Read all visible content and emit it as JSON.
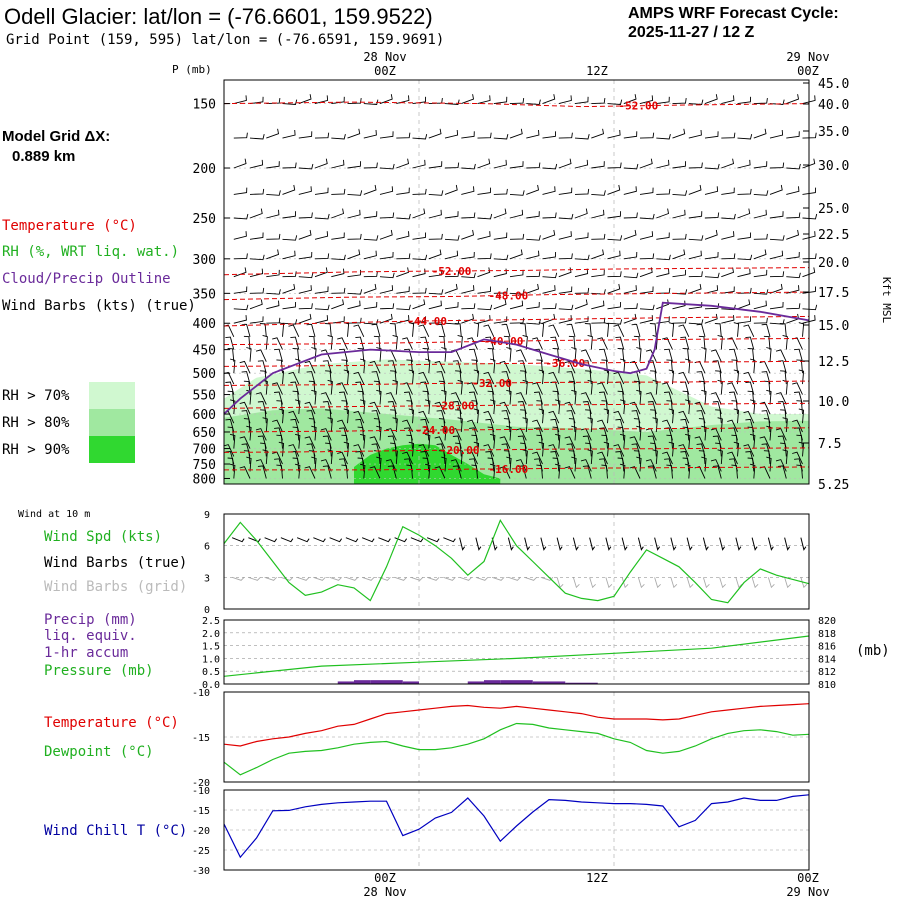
{
  "header": {
    "title": "Odell Glacier:  lat/lon = (-76.6601, 159.9522)",
    "subtitle": "Grid Point (159, 595) lat/lon = (-76.6591, 159.9691)",
    "cycle_line1": "AMPS WRF Forecast Cycle:",
    "cycle_line2": "2025-11-27 / 12  Z"
  },
  "sidebar": {
    "model_grid_label": "Model Grid ΔX:",
    "model_grid_value": "0.889 km",
    "legend_temperature": "Temperature (°C)",
    "legend_rh": "RH (%, WRT liq. wat.)",
    "legend_cloud": "Cloud/Precip Outline",
    "legend_wind": "Wind Barbs (kts) (true)",
    "rh_levels": [
      "RH > 70%",
      "RH > 80%",
      "RH > 90%"
    ],
    "rh_colors": [
      "#d0f8d0",
      "#a0e8a0",
      "#30d830"
    ],
    "wind10_title": "Wind at 10 m",
    "wind_spd_label": "Wind Spd (kts)",
    "wind_barbs_true": "Wind Barbs (true)",
    "wind_barbs_grid": "Wind Barbs (grid)",
    "precip_label_1": "Precip (mm)",
    "precip_label_2": "liq. equiv.",
    "precip_label_3": "1-hr accum",
    "pressure_label": "Pressure (mb)",
    "pressure_unit": "(mb)",
    "temp_label": "Temperature (°C)",
    "dew_label": "Dewpoint (°C)",
    "windchill_label": "Wind Chill T (°C)"
  },
  "time_axis": {
    "top_dates": [
      "28 Nov",
      "29 Nov"
    ],
    "ticks": [
      "00Z",
      "12Z",
      "00Z"
    ],
    "bottom_dates": [
      "28 Nov",
      "29 Nov"
    ]
  },
  "colors": {
    "temperature": "#e00000",
    "rh": "#20c020",
    "cloud": "#6a2a9a",
    "wind_true": "#000000",
    "wind_grid": "#aaaaaa",
    "precip": "#6a2a9a",
    "pressure": "#20c020",
    "windchill": "#0000c0"
  },
  "chart_data": [
    {
      "type": "heatmap",
      "name": "cross-section",
      "ylabel": "P (mb)",
      "right_label": "Kft MSL",
      "pressure_ticks": [
        "150",
        "200",
        "250",
        "300",
        "350",
        "400",
        "450",
        "500",
        "550",
        "600",
        "650",
        "700",
        "750",
        "800"
      ],
      "height_ticks": [
        "45.0",
        "40.0",
        "35.0",
        "30.0",
        "25.0",
        "22.5",
        "20.0",
        "17.5",
        "15.0",
        "12.5",
        "10.0",
        "7.5",
        "5.25"
      ],
      "ylim": [
        820,
        135
      ],
      "x_hours": [
        0,
        36
      ],
      "isotherms": [
        {
          "label": "-52.00",
          "hours": [
            0,
            8,
            16,
            22,
            28,
            36
          ],
          "p": [
            150,
            149,
            150,
            152,
            151,
            150
          ]
        },
        {
          "label": "-52.00",
          "hours": [
            0,
            8,
            12,
            18,
            24,
            36
          ],
          "p": [
            322,
            318,
            317,
            316,
            314,
            312
          ]
        },
        {
          "label": "-48.00",
          "hours": [
            0,
            8,
            14,
            20,
            28,
            36
          ],
          "p": [
            360,
            356,
            355,
            352,
            350,
            348
          ]
        },
        {
          "label": "-44.00",
          "hours": [
            0,
            6,
            12,
            20,
            28,
            36
          ],
          "p": [
            405,
            400,
            396,
            393,
            390,
            388
          ]
        },
        {
          "label": "-40.00",
          "hours": [
            0,
            8,
            14,
            20,
            28,
            36
          ],
          "p": [
            440,
            438,
            435,
            432,
            430,
            428
          ]
        },
        {
          "label": "-36.00",
          "hours": [
            0,
            8,
            14,
            20,
            28,
            36
          ],
          "p": [
            485,
            483,
            480,
            478,
            476,
            474
          ]
        },
        {
          "label": "-32.00",
          "hours": [
            0,
            8,
            14,
            20,
            28,
            36
          ],
          "p": [
            528,
            526,
            523,
            521,
            520,
            518
          ]
        },
        {
          "label": "-28.00",
          "hours": [
            0,
            8,
            14,
            20,
            28,
            36
          ],
          "p": [
            585,
            580,
            578,
            576,
            574,
            572
          ]
        },
        {
          "label": "-24.00",
          "hours": [
            0,
            6,
            12,
            20,
            28,
            36
          ],
          "p": [
            650,
            648,
            645,
            642,
            640,
            638
          ]
        },
        {
          "label": "-20.00",
          "hours": [
            0,
            6,
            12,
            20,
            28,
            36
          ],
          "p": [
            712,
            710,
            706,
            702,
            700,
            698
          ]
        },
        {
          "label": "-16.00",
          "hours": [
            0,
            8,
            14,
            22,
            28,
            36
          ],
          "p": [
            770,
            770,
            768,
            764,
            762,
            760
          ]
        }
      ],
      "cloud_outline": {
        "hours": [
          0,
          1,
          3,
          6,
          9,
          12,
          14,
          16,
          18,
          20,
          22,
          24,
          25,
          26,
          26.5,
          27,
          30,
          33,
          36
        ],
        "p": [
          600,
          560,
          500,
          460,
          450,
          455,
          455,
          430,
          440,
          460,
          480,
          495,
          500,
          490,
          450,
          365,
          370,
          380,
          395
        ]
      },
      "rh70": {
        "hours": [
          0,
          2,
          6,
          10,
          14,
          18,
          22,
          26,
          30,
          33,
          36
        ],
        "p_top": [
          560,
          510,
          480,
          470,
          475,
          480,
          490,
          505,
          580,
          600,
          600
        ]
      },
      "rh80": {
        "hours": [
          0,
          3,
          6,
          10,
          14,
          18,
          22,
          26,
          30,
          33,
          36
        ],
        "p_top": [
          610,
          590,
          585,
          600,
          615,
          635,
          640,
          650,
          630,
          620,
          618
        ]
      },
      "rh90": {
        "hours": [
          8,
          9,
          10,
          11,
          12,
          13,
          14,
          15,
          16,
          17
        ],
        "p_top": [
          760,
          720,
          700,
          690,
          685,
          690,
          720,
          750,
          785,
          800
        ]
      }
    },
    {
      "type": "line",
      "name": "wind-10m",
      "ylim": [
        0,
        9
      ],
      "y_ticks": [
        "9",
        "6",
        "3",
        "0"
      ],
      "x_hours": [
        0,
        1,
        2,
        3,
        4,
        5,
        6,
        7,
        8,
        9,
        10,
        11,
        12,
        13,
        14,
        15,
        16,
        17,
        18,
        19,
        20,
        21,
        22,
        23,
        24,
        25,
        26,
        27,
        28,
        29,
        30,
        31,
        32,
        33,
        34,
        35,
        36
      ],
      "series": [
        {
          "name": "Wind Spd (kts)",
          "values": [
            6.2,
            8.2,
            6.5,
            4.5,
            2.5,
            1.3,
            1.6,
            2.3,
            2.0,
            0.8,
            4.0,
            7.8,
            7.0,
            6.0,
            4.8,
            3.2,
            4.5,
            8.4,
            6.0,
            4.5,
            3.0,
            1.5,
            1.0,
            0.8,
            1.2,
            3.5,
            5.6,
            4.8,
            4.0,
            2.5,
            0.9,
            0.6,
            2.5,
            3.8,
            3.2,
            2.8,
            2.4
          ]
        }
      ]
    },
    {
      "type": "line",
      "name": "precip-pressure",
      "y_ticks_left": [
        "2.5",
        "2.0",
        "1.5",
        "1.0",
        "0.5",
        "0.0"
      ],
      "y_ticks_right": [
        "820",
        "818",
        "816",
        "814",
        "812",
        "810"
      ],
      "precip_ylim": [
        0,
        2.5
      ],
      "pressure_ylim": [
        810,
        820
      ],
      "x_hours": [
        0,
        6,
        12,
        18,
        24,
        30,
        36
      ],
      "series": [
        {
          "name": "Pressure (mb)",
          "values": [
            811.2,
            812.8,
            813.4,
            814.0,
            814.8,
            815.6,
            817.5
          ]
        },
        {
          "name": "Precip (mm)",
          "hours": [
            7,
            8,
            9,
            10,
            11,
            15,
            16,
            17,
            18,
            19,
            20,
            21,
            22
          ],
          "values": [
            0.1,
            0.15,
            0.15,
            0.15,
            0.1,
            0.1,
            0.15,
            0.15,
            0.15,
            0.1,
            0.1,
            0.05,
            0.05
          ]
        }
      ]
    },
    {
      "type": "line",
      "name": "temp-dewpoint",
      "ylim": [
        -20,
        -10
      ],
      "y_ticks": [
        "-10",
        "-15",
        "-20"
      ],
      "x_hours": [
        0,
        1,
        2,
        3,
        4,
        5,
        6,
        7,
        8,
        9,
        10,
        11,
        12,
        13,
        14,
        15,
        16,
        17,
        18,
        19,
        20,
        21,
        22,
        23,
        24,
        25,
        26,
        27,
        28,
        29,
        30,
        31,
        32,
        33,
        34,
        35,
        36
      ],
      "series": [
        {
          "name": "Temperature (°C)",
          "values": [
            -15.8,
            -16.0,
            -15.5,
            -15.2,
            -15.0,
            -14.6,
            -14.3,
            -13.8,
            -13.6,
            -13.0,
            -12.4,
            -12.2,
            -12.0,
            -11.8,
            -11.6,
            -11.5,
            -11.7,
            -11.8,
            -11.6,
            -11.8,
            -12.0,
            -12.2,
            -12.4,
            -12.8,
            -13.0,
            -13.0,
            -13.0,
            -13.1,
            -13.0,
            -12.6,
            -12.2,
            -12.0,
            -11.8,
            -11.6,
            -11.5,
            -11.4,
            -11.3
          ]
        },
        {
          "name": "Dewpoint (°C)",
          "values": [
            -17.8,
            -19.2,
            -18.4,
            -17.5,
            -16.8,
            -16.6,
            -16.5,
            -16.2,
            -15.8,
            -15.6,
            -15.5,
            -16.0,
            -16.4,
            -16.4,
            -16.2,
            -15.8,
            -15.2,
            -14.2,
            -13.5,
            -13.6,
            -14.0,
            -14.2,
            -14.4,
            -14.6,
            -15.2,
            -15.6,
            -16.5,
            -16.8,
            -16.6,
            -16.0,
            -15.2,
            -14.6,
            -14.3,
            -14.2,
            -14.4,
            -14.8,
            -14.7
          ]
        }
      ]
    },
    {
      "type": "line",
      "name": "wind-chill",
      "ylim": [
        -30,
        -10
      ],
      "y_ticks": [
        "-10",
        "-15",
        "-20",
        "-25",
        "-30"
      ],
      "x_hours": [
        0,
        1,
        2,
        3,
        4,
        5,
        6,
        7,
        8,
        9,
        10,
        11,
        12,
        13,
        14,
        15,
        16,
        17,
        18,
        19,
        20,
        21,
        22,
        23,
        24,
        25,
        26,
        27,
        28,
        29,
        30,
        31,
        32,
        33,
        34,
        35,
        36
      ],
      "series": [
        {
          "name": "Wind Chill T (°C)",
          "values": [
            -18.5,
            -26.8,
            -22.0,
            -15.2,
            -15.1,
            -14.2,
            -13.6,
            -13.2,
            -13.0,
            -12.8,
            -12.8,
            -21.4,
            -19.8,
            -17.0,
            -15.6,
            -12.0,
            -16.5,
            -22.8,
            -19.0,
            -15.5,
            -12.4,
            -12.6,
            -13.0,
            -13.2,
            -13.4,
            -13.4,
            -13.6,
            -14.0,
            -19.2,
            -17.6,
            -13.4,
            -13.0,
            -12.0,
            -12.6,
            -12.6,
            -11.6,
            -11.2
          ]
        }
      ]
    }
  ]
}
